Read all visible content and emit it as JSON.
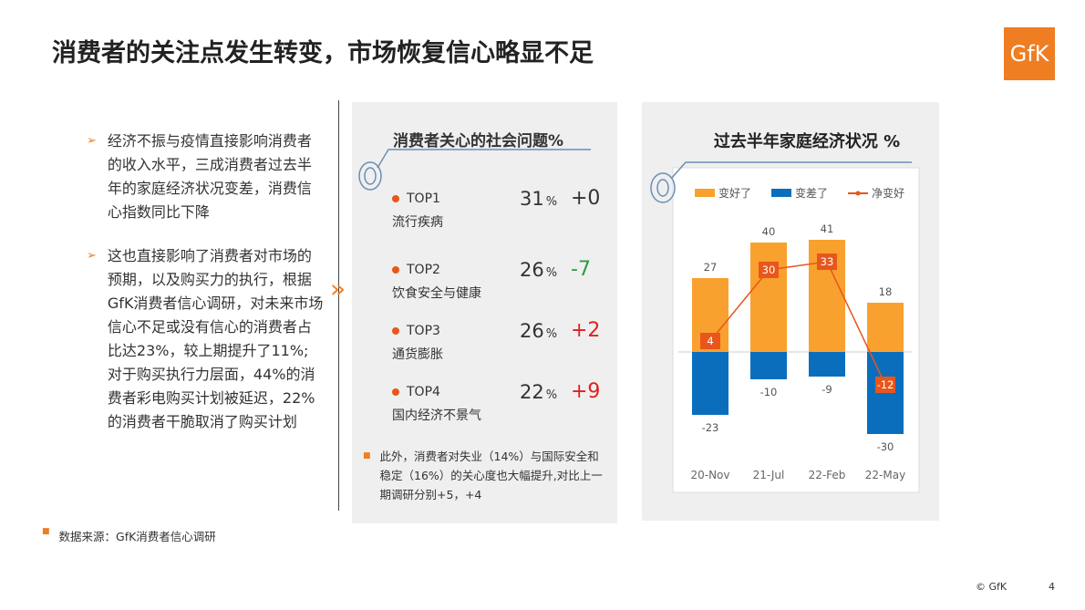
{
  "title": "消费者的关注点发生转变，市场恢复信心略显不足",
  "logo": "GfK",
  "bullets": [
    "经济不振与疫情直接影响消费者的收入水平，三成消费者过去半年的家庭经济状况变差，消费信心指数同比下降",
    "这也直接影响了消费者对市场的预期，以及购买力的执行，根据GfK消费者信心调研，对未来市场信心不足或没有信心的消费者占比达23%，较上期提升了11%; 对于购买执行力层面，44%的消费者彩电购买计划被延迟，22%的消费者干脆取消了购买计划"
  ],
  "concerns": {
    "title": "消费者关心的社会问题%",
    "items": [
      {
        "rank": "TOP1",
        "name": "流行疾病",
        "share": "31",
        "unit": "%",
        "change": "+0",
        "color": "#333333"
      },
      {
        "rank": "TOP2",
        "name": "饮食安全与健康",
        "share": "26",
        "unit": "%",
        "change": "-7",
        "color": "#2e9a4a"
      },
      {
        "rank": "TOP3",
        "name": "通货膨胀",
        "share": "26",
        "unit": "%",
        "change": "+2",
        "color": "#e02020"
      },
      {
        "rank": "TOP4",
        "name": "国内经济不景气",
        "share": "22",
        "unit": "%",
        "change": "+9",
        "color": "#e02020"
      }
    ],
    "note": "此外，消费者对失业（14%）与国际安全和稳定（16%）的关心度也大幅提升,对比上一期调研分别+5，+4"
  },
  "source": "数据来源：GfK消费者信心调研",
  "copyright": "© GfK",
  "page": "4",
  "chart_data": {
    "type": "bar-line",
    "title": "过去半年家庭经济状况 %",
    "categories": [
      "20-Nov",
      "21-Jul",
      "22-Feb",
      "22-May"
    ],
    "series": [
      {
        "name": "变好了",
        "color": "#f9a12e",
        "type": "bar",
        "values": [
          27,
          40,
          41,
          18
        ]
      },
      {
        "name": "变差了",
        "color": "#0a6ebd",
        "type": "bar",
        "values": [
          -23,
          -10,
          -9,
          -30
        ]
      },
      {
        "name": "净变好",
        "color": "#e8561c",
        "type": "line",
        "values": [
          4,
          30,
          33,
          -12
        ]
      }
    ]
  }
}
